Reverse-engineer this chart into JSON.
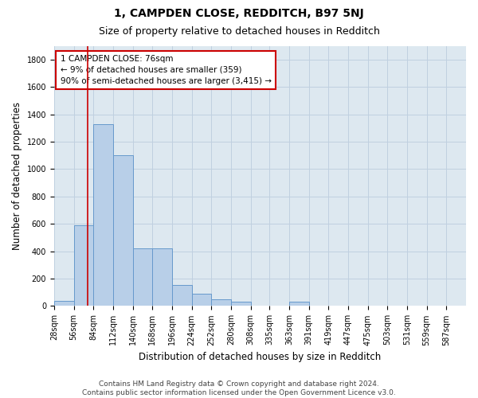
{
  "title": "1, CAMPDEN CLOSE, REDDITCH, B97 5NJ",
  "subtitle": "Size of property relative to detached houses in Redditch",
  "xlabel": "Distribution of detached houses by size in Redditch",
  "ylabel": "Number of detached properties",
  "footnote": "Contains HM Land Registry data © Crown copyright and database right 2024.\nContains public sector information licensed under the Open Government Licence v3.0.",
  "bar_color": "#b8cfe8",
  "bar_edge_color": "#6699cc",
  "grid_color": "#c0d0e0",
  "background_color": "#dde8f0",
  "property_line_color": "#cc0000",
  "annotation_box_color": "#cc0000",
  "bin_edges": [
    28,
    56,
    84,
    112,
    140,
    168,
    196,
    224,
    252,
    280,
    308,
    335,
    363,
    391,
    419,
    447,
    475,
    503,
    531,
    559,
    587,
    615
  ],
  "categories": [
    "28sqm",
    "56sqm",
    "84sqm",
    "112sqm",
    "140sqm",
    "168sqm",
    "196sqm",
    "224sqm",
    "252sqm",
    "280sqm",
    "308sqm",
    "335sqm",
    "363sqm",
    "391sqm",
    "419sqm",
    "447sqm",
    "475sqm",
    "503sqm",
    "531sqm",
    "559sqm",
    "587sqm"
  ],
  "values": [
    40,
    590,
    1330,
    1100,
    420,
    420,
    155,
    90,
    50,
    30,
    0,
    0,
    30,
    0,
    0,
    0,
    0,
    0,
    0,
    0,
    0
  ],
  "property_sqm": 76,
  "property_line_x": 76,
  "annotation_text": "1 CAMPDEN CLOSE: 76sqm\n← 9% of detached houses are smaller (359)\n90% of semi-detached houses are larger (3,415) →",
  "ylim": [
    0,
    1900
  ],
  "yticks": [
    0,
    200,
    400,
    600,
    800,
    1000,
    1200,
    1400,
    1600,
    1800
  ],
  "title_fontsize": 10,
  "subtitle_fontsize": 9,
  "label_fontsize": 8.5,
  "tick_fontsize": 7,
  "footnote_fontsize": 6.5,
  "annotation_fontsize": 7.5
}
